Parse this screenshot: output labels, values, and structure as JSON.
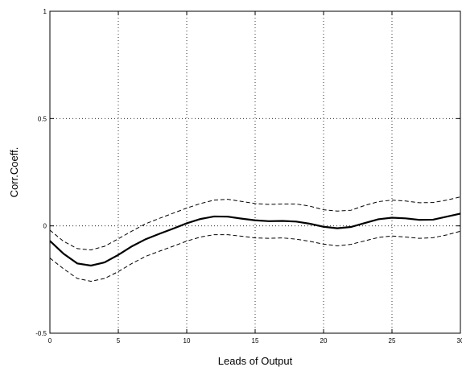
{
  "chart_data": {
    "type": "line",
    "title": "",
    "xlabel": "Leads of Output",
    "ylabel": "Corr.Coeff.",
    "xlim": [
      0,
      30
    ],
    "ylim": [
      -0.5,
      1
    ],
    "xticks": [
      0,
      5,
      10,
      15,
      20,
      25,
      30
    ],
    "xtick_labels": [
      "0",
      "5",
      "10",
      "15",
      "20",
      "25",
      "30"
    ],
    "yticks": [
      -0.5,
      0,
      0.5,
      1
    ],
    "ytick_labels": [
      "-0.5",
      "0",
      "0.5",
      "1"
    ],
    "grid": true,
    "x": [
      0,
      1,
      2,
      3,
      4,
      5,
      6,
      7,
      8,
      9,
      10,
      11,
      12,
      13,
      14,
      15,
      16,
      17,
      18,
      19,
      20,
      21,
      22,
      23,
      24,
      25,
      26,
      27,
      28,
      29,
      30
    ],
    "series": [
      {
        "style": "solid",
        "values": [
          -0.07,
          -0.13,
          -0.175,
          -0.185,
          -0.17,
          -0.135,
          -0.095,
          -0.062,
          -0.037,
          -0.013,
          0.012,
          0.032,
          0.044,
          0.043,
          0.034,
          0.026,
          0.022,
          0.023,
          0.02,
          0.01,
          -0.004,
          -0.011,
          -0.005,
          0.013,
          0.031,
          0.038,
          0.035,
          0.028,
          0.029,
          0.043,
          0.057
        ]
      },
      {
        "style": "dashed",
        "values": [
          -0.02,
          -0.072,
          -0.106,
          -0.112,
          -0.095,
          -0.06,
          -0.024,
          0.01,
          0.035,
          0.059,
          0.083,
          0.104,
          0.12,
          0.124,
          0.114,
          0.104,
          0.1,
          0.102,
          0.102,
          0.092,
          0.075,
          0.069,
          0.073,
          0.095,
          0.113,
          0.12,
          0.116,
          0.108,
          0.109,
          0.12,
          0.135
        ]
      },
      {
        "style": "dashed",
        "values": [
          -0.15,
          -0.2,
          -0.245,
          -0.258,
          -0.245,
          -0.213,
          -0.175,
          -0.142,
          -0.118,
          -0.095,
          -0.071,
          -0.052,
          -0.041,
          -0.041,
          -0.048,
          -0.056,
          -0.058,
          -0.056,
          -0.062,
          -0.072,
          -0.085,
          -0.093,
          -0.086,
          -0.07,
          -0.054,
          -0.047,
          -0.052,
          -0.058,
          -0.055,
          -0.042,
          -0.025
        ]
      }
    ]
  }
}
